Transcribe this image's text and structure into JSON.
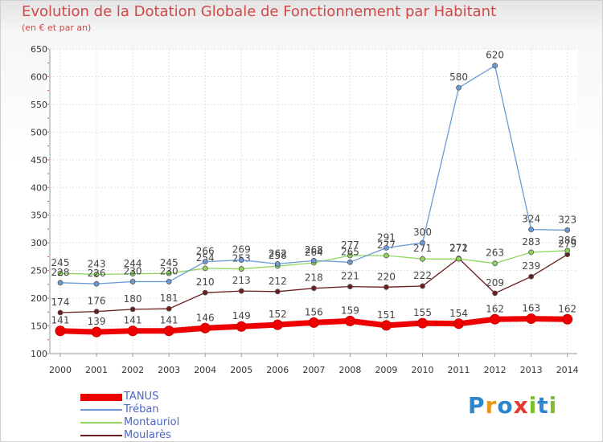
{
  "title": "Evolution de la Dotation Globale de Fonctionnement par Habitant",
  "subtitle": "(en € et par an)",
  "logo": {
    "text": "Proxiti",
    "letter_colors": [
      "#2b87d0",
      "#e69a1c",
      "#2b87d0",
      "#e43a2e",
      "#7bbf2a",
      "#2b87d0",
      "#7bbf2a"
    ]
  },
  "chart_data": {
    "type": "line",
    "title": "Evolution de la Dotation Globale de Fonctionnement par Habitant",
    "subtitle": "(en € et par an)",
    "x": [
      "2000",
      "2001",
      "2002",
      "2003",
      "2004",
      "2005",
      "2006",
      "2007",
      "2008",
      "2009",
      "2010",
      "2011",
      "2012",
      "2013",
      "2014"
    ],
    "ylim": [
      100,
      650
    ],
    "yticks": [
      100,
      150,
      200,
      250,
      300,
      350,
      400,
      450,
      500,
      550,
      600,
      650
    ],
    "grid": true,
    "legend_position": "bottom-left",
    "series": [
      {
        "name": "Moularès",
        "color": "#6a1e1e",
        "values": [
          174,
          176,
          180,
          181,
          210,
          213,
          212,
          218,
          221,
          220,
          222,
          272,
          209,
          239,
          279
        ],
        "labels": [
          "174",
          "176",
          "180",
          "181",
          "210",
          "213",
          "212",
          "218",
          "221",
          "220",
          "222",
          "272",
          "209",
          "239",
          "279"
        ]
      },
      {
        "name": "Montauriol",
        "color": "#8fd65a",
        "values": [
          245,
          243,
          244,
          245,
          254,
          253,
          258,
          264,
          277,
          277,
          271,
          271,
          263,
          283,
          286
        ],
        "labels": [
          "245",
          "243",
          "244",
          "245",
          "254",
          "253",
          "258",
          "264",
          "277",
          "277",
          "271",
          "271",
          "263",
          "283",
          "286"
        ]
      },
      {
        "name": "Tréban",
        "color": "#6a9bd8",
        "values": [
          228,
          226,
          230,
          230,
          266,
          269,
          262,
          268,
          265,
          291,
          300,
          580,
          620,
          324,
          323
        ],
        "labels": [
          "228",
          "226",
          "230",
          "230",
          "266",
          "269",
          "262",
          "268",
          "265",
          "291",
          "300",
          "580",
          "620",
          "324",
          "323"
        ]
      },
      {
        "name": "TANUS",
        "color": "#ee0000",
        "values": [
          141,
          139,
          141,
          141,
          146,
          149,
          152,
          156,
          159,
          151,
          155,
          154,
          162,
          163,
          162
        ],
        "labels": [
          "141",
          "139",
          "141",
          "141",
          "146",
          "149",
          "152",
          "156",
          "159",
          "151",
          "155",
          "154",
          "162",
          "163",
          "162"
        ]
      }
    ],
    "legend_order": [
      "TANUS",
      "Tréban",
      "Montauriol",
      "Moularès"
    ]
  }
}
